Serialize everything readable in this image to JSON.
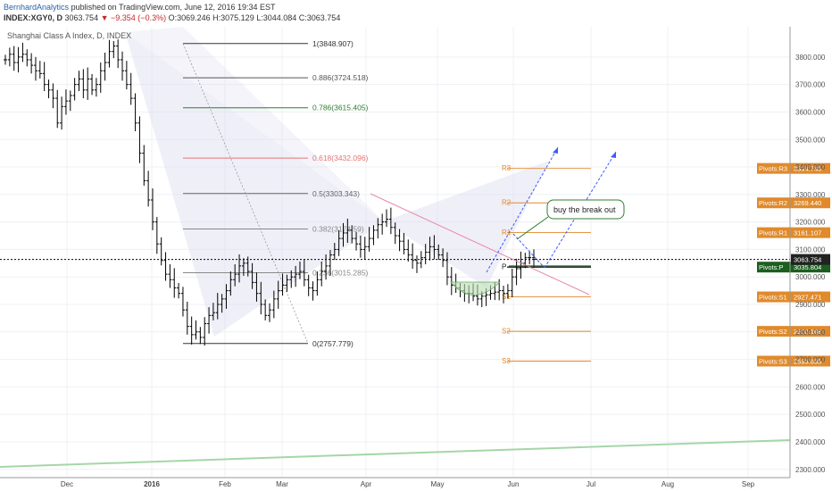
{
  "header": {
    "author": "BernhardAnalytics",
    "published": "published on TradingView.com, June 12, 2016 19:34 EST",
    "symbol": "INDEX:XGY0, D",
    "last": "3063.754",
    "change": "−9.354 (−0.3%)",
    "open": "O:3069.246",
    "high": "H:3075.129",
    "low": "L:3044.084",
    "close": "C:3063.754"
  },
  "chart_data": {
    "type": "candlestick",
    "title": "Shanghai Class A Index, D, INDEX",
    "x_labels": [
      "Dec",
      "2016",
      "Feb",
      "Mar",
      "Apr",
      "May",
      "Jun",
      "Jul",
      "Aug",
      "Sep"
    ],
    "y_ticks": [
      "3800.000",
      "3700.000",
      "3600.000",
      "3500.000",
      "3400.000",
      "3300.000",
      "3200.000",
      "3100.000",
      "3000.000",
      "2900.000",
      "2800.000",
      "2700.000",
      "2600.000",
      "2500.000",
      "2400.000",
      "2300.000"
    ],
    "ylim": [
      2270,
      3910
    ],
    "last_price": "3063.754",
    "fib_levels": [
      {
        "label": "1(3848.907)",
        "value": 3848.907,
        "color": "#333333"
      },
      {
        "label": "0.886(3724.518)",
        "value": 3724.518,
        "color": "#555555"
      },
      {
        "label": "0.786(3615.405)",
        "value": 3615.405,
        "color": "#2e7d32"
      },
      {
        "label": "0.618(3432.096)",
        "value": 3432.096,
        "color": "#e57373"
      },
      {
        "label": "0.5(3303.343)",
        "value": 3303.343,
        "color": "#666666"
      },
      {
        "label": "0.382(3174.59)",
        "value": 3174.59,
        "color": "#888888"
      },
      {
        "label": "0.236(3015.285)",
        "value": 3015.285,
        "color": "#888888"
      },
      {
        "label": "0(2757.779)",
        "value": 2757.779,
        "color": "#333333"
      }
    ],
    "pivot_levels": [
      {
        "label": "R3",
        "tag": "Pivots:R3",
        "value": 3394.743
      },
      {
        "label": "R2",
        "tag": "Pivots:R2",
        "value": 3269.44
      },
      {
        "label": "R1",
        "tag": "Pivots:R1",
        "value": 3161.107
      },
      {
        "label": "P",
        "tag": "Pivots:P",
        "value": 3035.804
      },
      {
        "label": "S1",
        "tag": "Pivots:S1",
        "value": 2927.471
      },
      {
        "label": "S2",
        "tag": "Pivots:S2",
        "value": 2802.168
      },
      {
        "label": "S3",
        "tag": "Pivots:S3",
        "value": 2693.835
      }
    ],
    "pivot_value_labels": [
      "3394.743",
      "3269.440",
      "3161.107",
      "3035.804",
      "2927.471",
      "2802.168",
      "2693.835"
    ],
    "annotation": "buy the break out",
    "series": [
      {
        "values": [
          3790,
          3810,
          3780,
          3800,
          3810,
          3790,
          3770,
          3750,
          3740,
          3700,
          3680,
          3650,
          3560,
          3620,
          3640,
          3660,
          3700,
          3720,
          3680,
          3720,
          3680,
          3700,
          3750,
          3780,
          3820,
          3840,
          3790,
          3750,
          3700,
          3650,
          3560,
          3450,
          3350,
          3280,
          3200,
          3120,
          3060,
          3010,
          2990,
          2960,
          2940,
          2880,
          2820,
          2790,
          2800,
          2780,
          2830,
          2860,
          2870,
          2900,
          2920,
          2950,
          2990,
          3010,
          3040,
          3050,
          3020,
          2980,
          2940,
          2900,
          2860,
          2880,
          2920,
          2950,
          2970,
          2990,
          3000,
          3010,
          3020,
          2990,
          2960,
          2950,
          2990,
          3020,
          3040,
          3080,
          3100,
          3140,
          3160,
          3170,
          3140,
          3120,
          3100,
          3110,
          3140,
          3170,
          3190,
          3200,
          3210,
          3180,
          3150,
          3130,
          3100,
          3080,
          3060,
          3050,
          3070,
          3090,
          3110,
          3100,
          3080,
          3060,
          3000,
          2970,
          2960,
          2950,
          2940,
          2940,
          2930,
          2920,
          2930,
          2935,
          2940,
          2945,
          2950,
          2940,
          2950,
          3000,
          3030,
          3050,
          3070,
          3070,
          3064
        ]
      }
    ]
  }
}
